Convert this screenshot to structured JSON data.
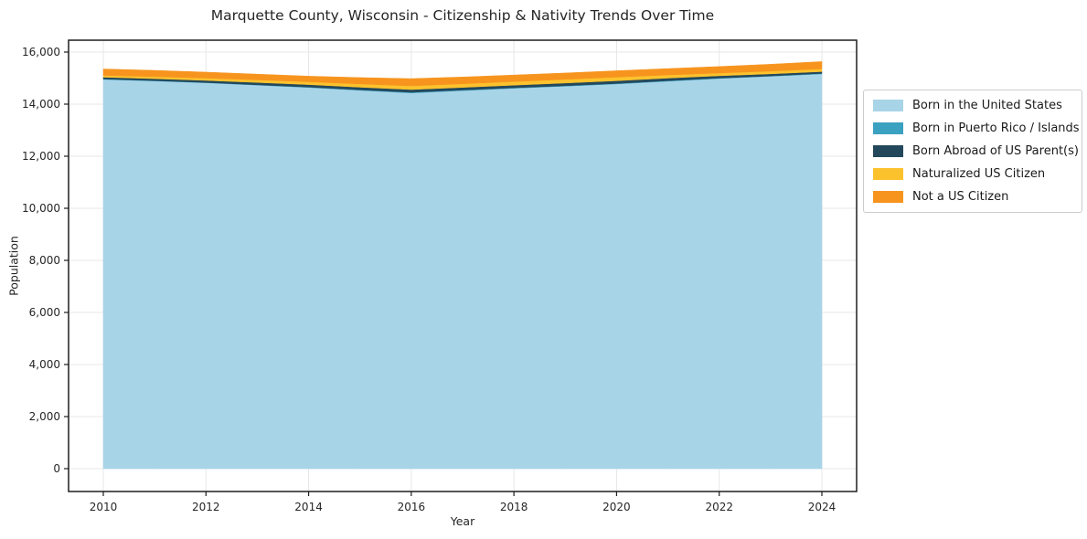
{
  "chart_data": {
    "type": "area",
    "stacked": true,
    "title": "Marquette County, Wisconsin - Citizenship & Nativity Trends Over Time",
    "xlabel": "Year",
    "ylabel": "Population",
    "x": [
      2010,
      2011,
      2012,
      2013,
      2014,
      2015,
      2016,
      2017,
      2018,
      2019,
      2020,
      2021,
      2022,
      2023,
      2024
    ],
    "series": [
      {
        "name": "Born in the United States",
        "color": "#a8d4e8",
        "values": [
          14950,
          14890,
          14820,
          14730,
          14640,
          14530,
          14430,
          14520,
          14610,
          14690,
          14775,
          14880,
          14985,
          15070,
          15160
        ]
      },
      {
        "name": "Born in Puerto Rico / Islands",
        "color": "#3ba1c0",
        "values": [
          15,
          12,
          10,
          12,
          15,
          20,
          25,
          22,
          18,
          16,
          18,
          20,
          15,
          12,
          20
        ]
      },
      {
        "name": "Born Abroad of US Parent(s)",
        "color": "#23485c",
        "values": [
          70,
          75,
          80,
          90,
          95,
          100,
          105,
          100,
          100,
          105,
          105,
          100,
          90,
          80,
          70
        ]
      },
      {
        "name": "Naturalized US Citizen",
        "color": "#fcc22d",
        "values": [
          70,
          80,
          90,
          100,
          110,
          125,
          140,
          140,
          140,
          140,
          140,
          120,
          105,
          105,
          105
        ]
      },
      {
        "name": "Not a US Citizen",
        "color": "#f7941e",
        "values": [
          245,
          240,
          230,
          220,
          215,
          245,
          280,
          260,
          250,
          245,
          245,
          245,
          250,
          265,
          280
        ]
      }
    ],
    "xticks": [
      2010,
      2012,
      2014,
      2016,
      2018,
      2020,
      2022,
      2024
    ],
    "xtick_labels": [
      "2010",
      "2012",
      "2014",
      "2016",
      "2018",
      "2020",
      "2022",
      "2024"
    ],
    "yticks": [
      0,
      2000,
      4000,
      6000,
      8000,
      10000,
      12000,
      14000,
      16000
    ],
    "ytick_labels": [
      "0",
      "2,000",
      "4,000",
      "6,000",
      "8,000",
      "10,000",
      "12,000",
      "14,000",
      "16,000"
    ],
    "ylim": [
      0,
      16000
    ],
    "grid": true,
    "legend_position": "right"
  }
}
